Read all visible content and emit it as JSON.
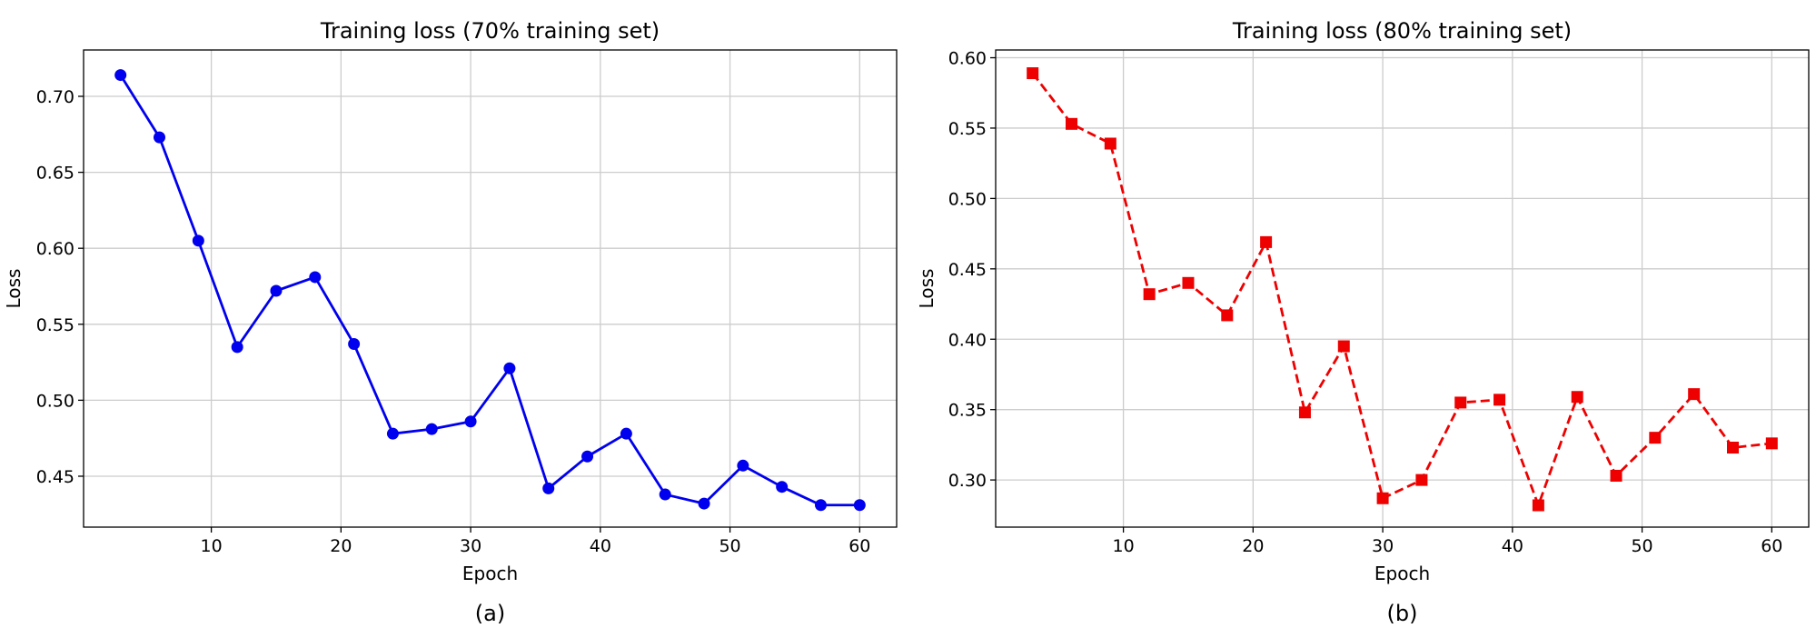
{
  "chart_data": [
    {
      "type": "line",
      "title": "Training loss (70% training set)",
      "xlabel": "Epoch",
      "ylabel": "Loss",
      "caption": "(a)",
      "xlim": [
        0.15,
        62.85
      ],
      "ylim": [
        0.4165,
        0.7305
      ],
      "xticks": [
        10,
        20,
        30,
        40,
        50,
        60
      ],
      "yticks": [
        0.45,
        0.5,
        0.55,
        0.6,
        0.65,
        0.7
      ],
      "ytick_labels": [
        "0.45",
        "0.50",
        "0.55",
        "0.60",
        "0.65",
        "0.70"
      ],
      "grid": true,
      "series": [
        {
          "color": "#0000ee",
          "line_style": "solid",
          "marker": "circle",
          "x": [
            3,
            6,
            9,
            12,
            15,
            18,
            21,
            24,
            27,
            30,
            33,
            36,
            39,
            42,
            45,
            48,
            51,
            54,
            57,
            60
          ],
          "y": [
            0.714,
            0.673,
            0.605,
            0.535,
            0.572,
            0.581,
            0.537,
            0.478,
            0.481,
            0.486,
            0.521,
            0.442,
            0.463,
            0.478,
            0.438,
            0.432,
            0.457,
            0.443,
            0.431,
            0.431
          ]
        }
      ]
    },
    {
      "type": "line",
      "title": "Training loss (80% training set)",
      "xlabel": "Epoch",
      "ylabel": "Loss",
      "caption": "(b)",
      "xlim": [
        0.15,
        62.85
      ],
      "ylim": [
        0.2665,
        0.6055
      ],
      "xticks": [
        10,
        20,
        30,
        40,
        50,
        60
      ],
      "yticks": [
        0.3,
        0.35,
        0.4,
        0.45,
        0.5,
        0.55,
        0.6
      ],
      "ytick_labels": [
        "0.30",
        "0.35",
        "0.40",
        "0.45",
        "0.50",
        "0.55",
        "0.60"
      ],
      "grid": true,
      "series": [
        {
          "color": "#ee0000",
          "line_style": "dashed",
          "marker": "square",
          "x": [
            3,
            6,
            9,
            12,
            15,
            18,
            21,
            24,
            27,
            30,
            33,
            36,
            39,
            42,
            45,
            48,
            51,
            54,
            57,
            60
          ],
          "y": [
            0.589,
            0.553,
            0.539,
            0.432,
            0.44,
            0.417,
            0.469,
            0.348,
            0.395,
            0.287,
            0.3,
            0.355,
            0.357,
            0.282,
            0.359,
            0.303,
            0.33,
            0.361,
            0.323,
            0.326
          ]
        }
      ]
    }
  ]
}
